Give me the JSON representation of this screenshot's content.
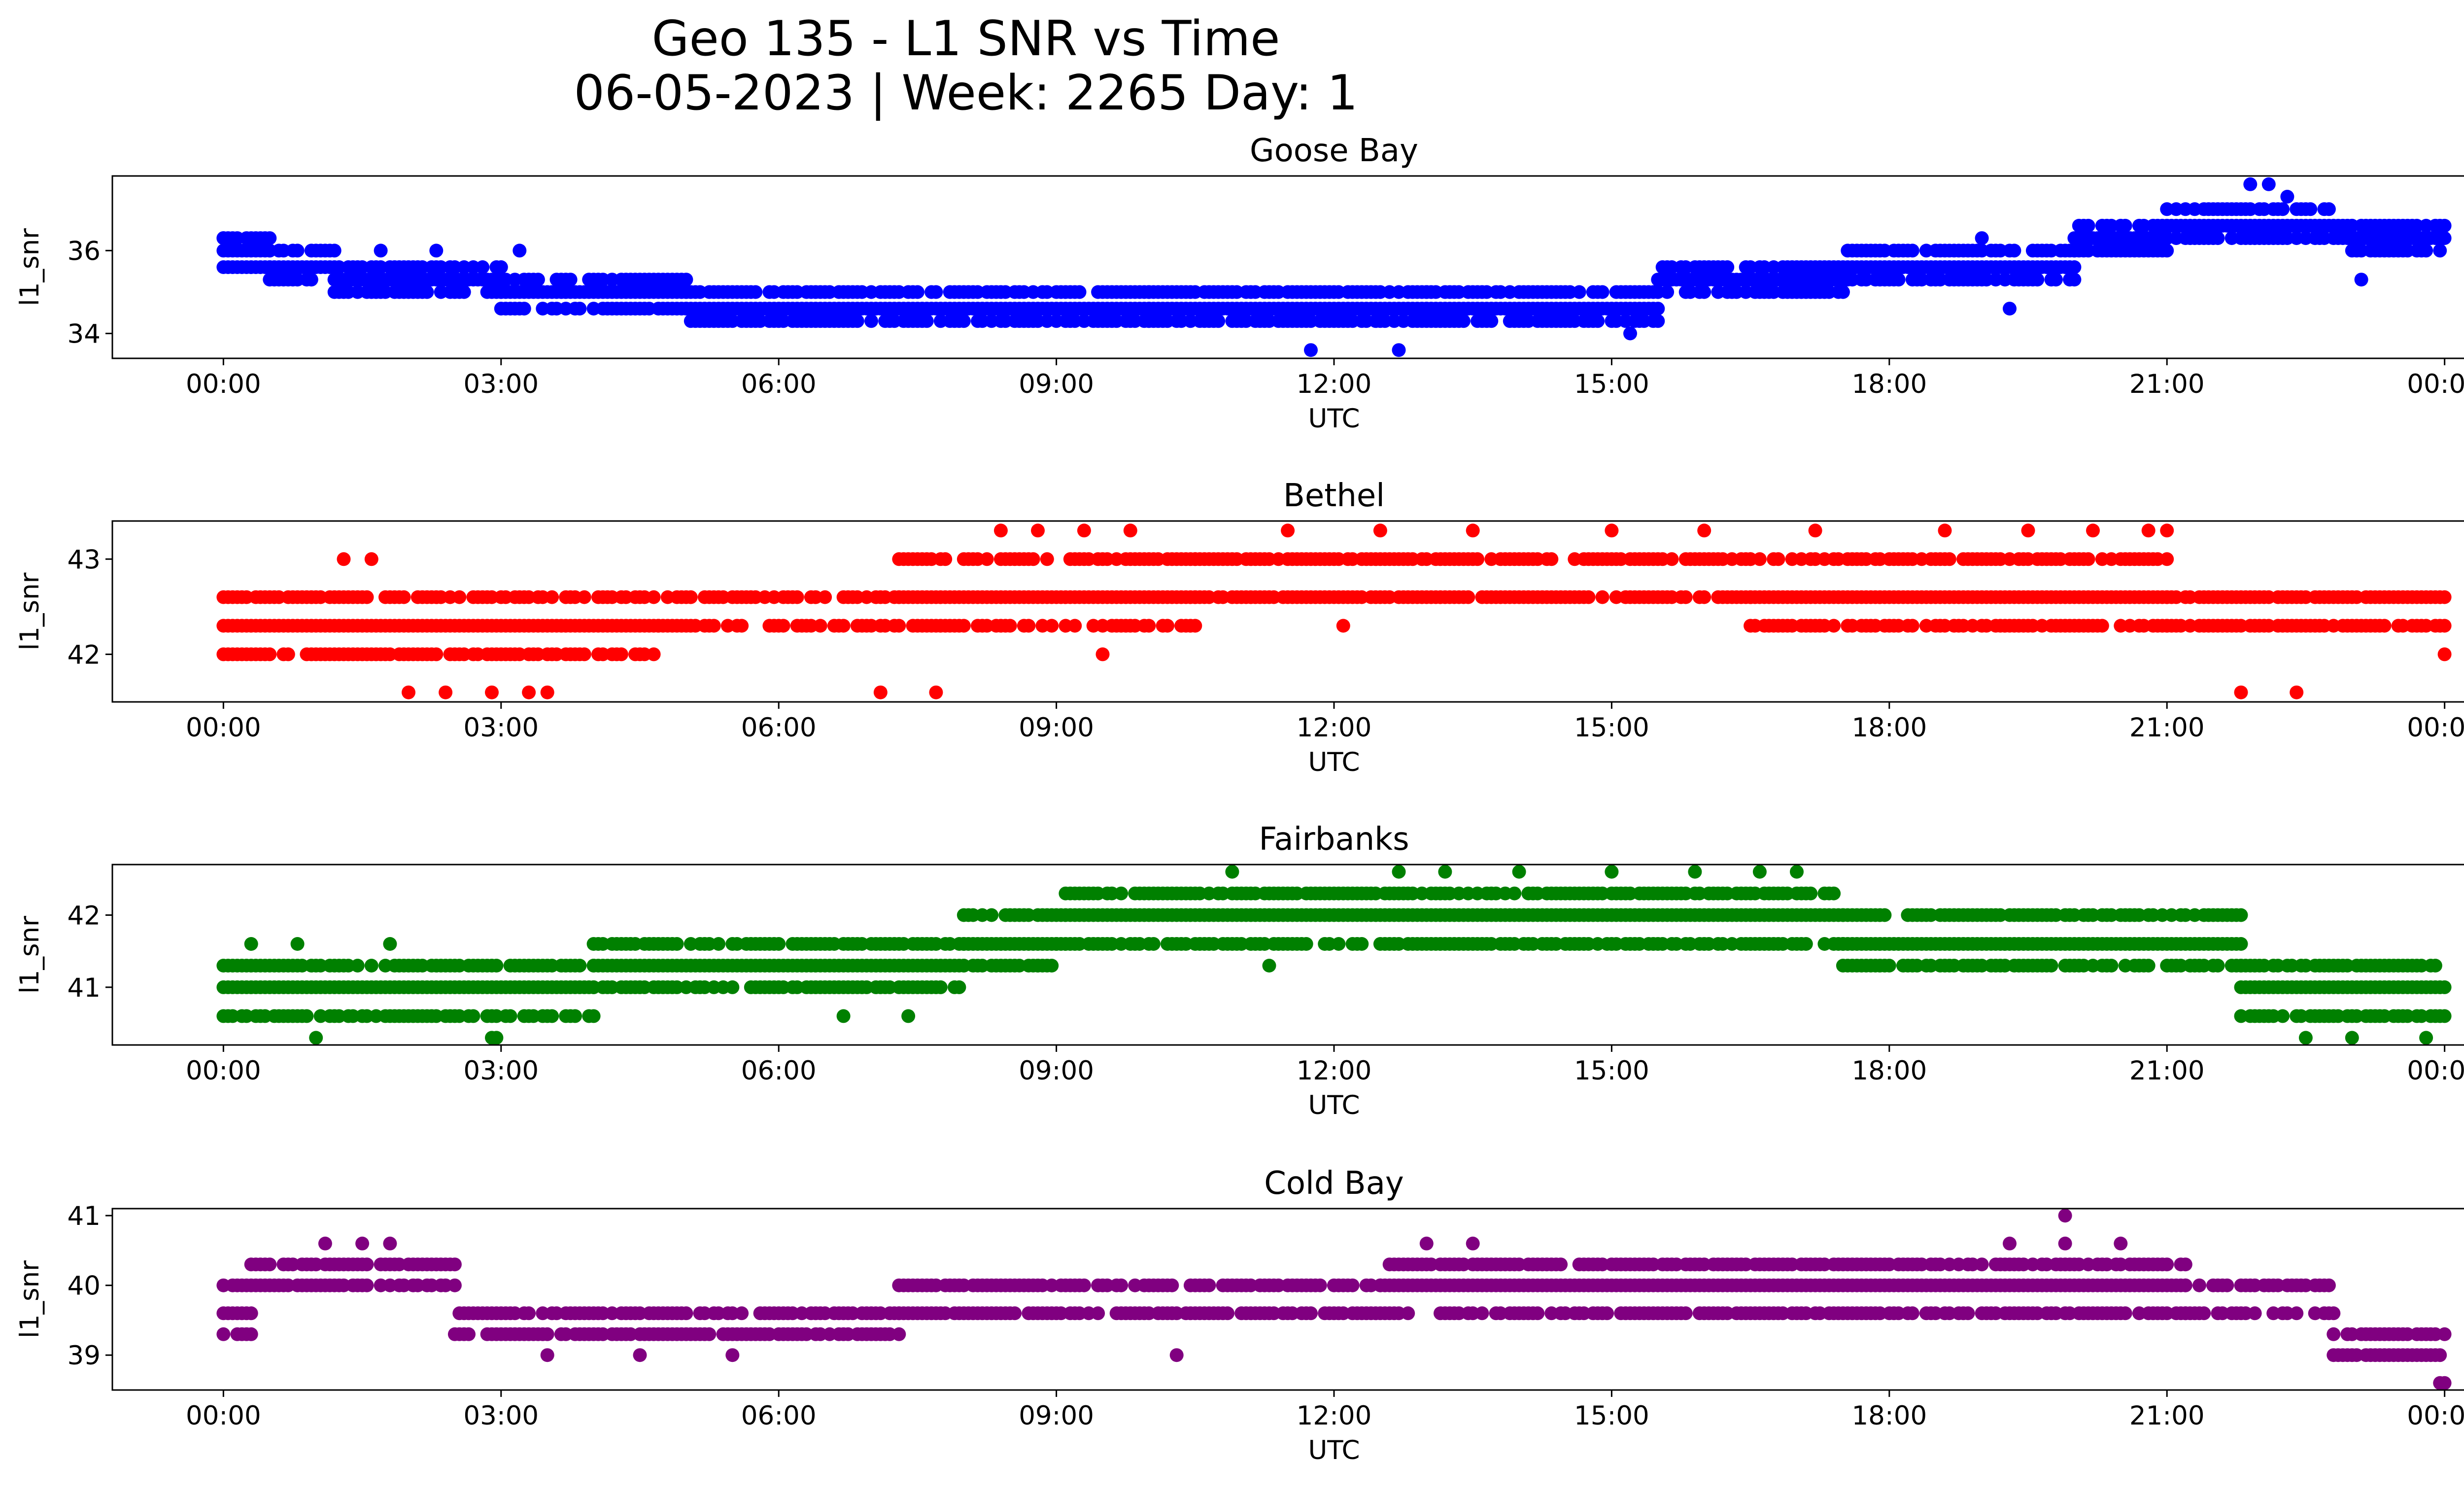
{
  "figure": {
    "title_line1": "Geo 135 - L1 SNR vs Time",
    "title_line2": "06-05-2023 | Week: 2265 Day: 1"
  },
  "chart_data": [
    {
      "type": "scatter",
      "title": "Goose Bay",
      "color": "#0000ff",
      "xlabel": "UTC",
      "ylabel": "l1_snr",
      "x_unit": "hours UTC",
      "xlim": [
        -1.2,
        25.2
      ],
      "ylim": [
        33.4,
        37.8
      ],
      "xticks": [
        0,
        3,
        6,
        9,
        12,
        15,
        18,
        21,
        24
      ],
      "xtick_labels": [
        "00:00",
        "03:00",
        "06:00",
        "09:00",
        "12:00",
        "15:00",
        "18:00",
        "21:00",
        "00:00"
      ],
      "yticks": [
        34,
        36
      ],
      "ytick_labels": [
        "34",
        "36"
      ],
      "levels": [
        33.6,
        34.0,
        34.3,
        34.6,
        35.0,
        35.3,
        35.6,
        36.0,
        36.3,
        36.6,
        37.0,
        37.3,
        37.6
      ],
      "bands": [
        {
          "from": 0.0,
          "to": 0.5,
          "levels": [
            35.6,
            36.0,
            36.3
          ]
        },
        {
          "from": 0.5,
          "to": 1.2,
          "levels": [
            35.3,
            35.6,
            36.0
          ]
        },
        {
          "from": 1.2,
          "to": 3.0,
          "levels": [
            35.0,
            35.3,
            35.6
          ]
        },
        {
          "from": 3.0,
          "to": 5.0,
          "levels": [
            34.6,
            35.0,
            35.3
          ]
        },
        {
          "from": 5.0,
          "to": 10.0,
          "levels": [
            34.3,
            34.6,
            35.0
          ]
        },
        {
          "from": 10.0,
          "to": 13.0,
          "levels": [
            34.3,
            34.6,
            35.0
          ]
        },
        {
          "from": 13.0,
          "to": 15.5,
          "levels": [
            34.3,
            34.6,
            35.0
          ]
        },
        {
          "from": 15.5,
          "to": 17.5,
          "levels": [
            35.0,
            35.3,
            35.6
          ]
        },
        {
          "from": 17.5,
          "to": 20.0,
          "levels": [
            35.3,
            35.6,
            36.0
          ]
        },
        {
          "from": 20.0,
          "to": 21.0,
          "levels": [
            36.0,
            36.3,
            36.6
          ]
        },
        {
          "from": 21.0,
          "to": 23.0,
          "levels": [
            36.3,
            36.6,
            37.0
          ]
        },
        {
          "from": 23.0,
          "to": 24.0,
          "levels": [
            36.0,
            36.3,
            36.6
          ]
        }
      ],
      "outliers": [
        [
          11.75,
          33.6
        ],
        [
          12.7,
          33.6
        ],
        [
          21.9,
          37.6
        ],
        [
          22.1,
          37.6
        ],
        [
          22.3,
          37.3
        ],
        [
          15.2,
          34.0
        ],
        [
          0.0,
          36.3
        ],
        [
          1.7,
          36.0
        ],
        [
          2.3,
          36.0
        ],
        [
          3.2,
          36.0
        ],
        [
          19.3,
          34.6
        ],
        [
          19.0,
          36.3
        ],
        [
          23.1,
          35.3
        ]
      ]
    },
    {
      "type": "scatter",
      "title": "Bethel",
      "color": "#ff0000",
      "xlabel": "UTC",
      "ylabel": "l1_snr",
      "x_unit": "hours UTC",
      "xlim": [
        -1.2,
        25.2
      ],
      "ylim": [
        41.5,
        43.4
      ],
      "xticks": [
        0,
        3,
        6,
        9,
        12,
        15,
        18,
        21,
        24
      ],
      "xtick_labels": [
        "00:00",
        "03:00",
        "06:00",
        "09:00",
        "12:00",
        "15:00",
        "18:00",
        "21:00",
        "00:00"
      ],
      "yticks": [
        42,
        43
      ],
      "ytick_labels": [
        "42",
        "43"
      ],
      "levels": [
        41.6,
        42.0,
        42.3,
        42.6,
        43.0,
        43.3
      ],
      "bands": [
        {
          "from": 0.0,
          "to": 4.7,
          "levels": [
            42.0,
            42.3,
            42.6
          ]
        },
        {
          "from": 4.7,
          "to": 7.3,
          "levels": [
            42.3,
            42.6
          ]
        },
        {
          "from": 7.3,
          "to": 10.5,
          "levels": [
            42.3,
            42.6,
            43.0
          ]
        },
        {
          "from": 10.5,
          "to": 16.5,
          "levels": [
            42.6,
            43.0
          ]
        },
        {
          "from": 16.5,
          "to": 21.0,
          "levels": [
            42.3,
            42.6,
            43.0
          ]
        },
        {
          "from": 21.0,
          "to": 24.0,
          "levels": [
            42.3,
            42.6
          ]
        }
      ],
      "outliers": [
        [
          1.3,
          43.0
        ],
        [
          1.6,
          43.0
        ],
        [
          2.0,
          41.6
        ],
        [
          2.4,
          41.6
        ],
        [
          2.9,
          41.6
        ],
        [
          3.3,
          41.6
        ],
        [
          3.5,
          41.6
        ],
        [
          7.1,
          41.6
        ],
        [
          7.7,
          41.6
        ],
        [
          9.5,
          42.0
        ],
        [
          12.1,
          42.3
        ],
        [
          21.8,
          41.6
        ],
        [
          22.4,
          41.6
        ],
        [
          24.0,
          42.0
        ],
        [
          8.4,
          43.3
        ],
        [
          8.8,
          43.3
        ],
        [
          9.3,
          43.3
        ],
        [
          9.8,
          43.3
        ],
        [
          11.5,
          43.3
        ],
        [
          12.5,
          43.3
        ],
        [
          13.5,
          43.3
        ],
        [
          15.0,
          43.3
        ],
        [
          16.0,
          43.3
        ],
        [
          17.2,
          43.3
        ],
        [
          18.6,
          43.3
        ],
        [
          19.5,
          43.3
        ],
        [
          20.2,
          43.3
        ],
        [
          20.8,
          43.3
        ],
        [
          21.0,
          43.3
        ]
      ]
    },
    {
      "type": "scatter",
      "title": "Fairbanks",
      "color": "#008000",
      "xlabel": "UTC",
      "ylabel": "l1_snr",
      "x_unit": "hours UTC",
      "xlim": [
        -1.2,
        25.2
      ],
      "ylim": [
        40.2,
        42.7
      ],
      "xticks": [
        0,
        3,
        6,
        9,
        12,
        15,
        18,
        21,
        24
      ],
      "xtick_labels": [
        "00:00",
        "03:00",
        "06:00",
        "09:00",
        "12:00",
        "15:00",
        "18:00",
        "21:00",
        "00:00"
      ],
      "yticks": [
        41,
        42
      ],
      "ytick_labels": [
        "41",
        "42"
      ],
      "levels": [
        40.3,
        40.6,
        41.0,
        41.3,
        41.6,
        42.0,
        42.3,
        42.6
      ],
      "bands": [
        {
          "from": 0.0,
          "to": 4.0,
          "levels": [
            40.6,
            41.0,
            41.3
          ]
        },
        {
          "from": 4.0,
          "to": 8.0,
          "levels": [
            41.0,
            41.3,
            41.6
          ]
        },
        {
          "from": 8.0,
          "to": 9.0,
          "levels": [
            41.3,
            41.6,
            42.0
          ]
        },
        {
          "from": 9.0,
          "to": 17.5,
          "levels": [
            41.6,
            42.0,
            42.3
          ]
        },
        {
          "from": 17.5,
          "to": 21.8,
          "levels": [
            41.3,
            41.6,
            42.0
          ]
        },
        {
          "from": 21.8,
          "to": 24.0,
          "levels": [
            40.6,
            41.0,
            41.3
          ]
        }
      ],
      "outliers": [
        [
          1.0,
          40.3
        ],
        [
          2.9,
          40.3
        ],
        [
          2.95,
          40.3
        ],
        [
          22.5,
          40.3
        ],
        [
          23.0,
          40.3
        ],
        [
          23.8,
          40.3
        ],
        [
          10.9,
          42.6
        ],
        [
          12.7,
          42.6
        ],
        [
          13.2,
          42.6
        ],
        [
          14.0,
          42.6
        ],
        [
          15.0,
          42.6
        ],
        [
          15.9,
          42.6
        ],
        [
          16.6,
          42.6
        ],
        [
          17.0,
          42.6
        ],
        [
          0.3,
          41.6
        ],
        [
          0.8,
          41.6
        ],
        [
          1.8,
          41.6
        ],
        [
          6.7,
          40.6
        ],
        [
          7.4,
          40.6
        ],
        [
          8.8,
          41.3
        ],
        [
          11.3,
          41.3
        ]
      ]
    },
    {
      "type": "scatter",
      "title": "Cold Bay",
      "color": "#800080",
      "xlabel": "UTC",
      "ylabel": "l1_snr",
      "x_unit": "hours UTC",
      "xlim": [
        -1.2,
        25.2
      ],
      "ylim": [
        38.5,
        41.1
      ],
      "xticks": [
        0,
        3,
        6,
        9,
        12,
        15,
        18,
        21,
        24
      ],
      "xtick_labels": [
        "00:00",
        "03:00",
        "06:00",
        "09:00",
        "12:00",
        "15:00",
        "18:00",
        "21:00",
        "00:00"
      ],
      "yticks": [
        39,
        40,
        41
      ],
      "ytick_labels": [
        "39",
        "40",
        "41"
      ],
      "levels": [
        38.6,
        39.0,
        39.3,
        39.6,
        40.0,
        40.3,
        40.6,
        41.0
      ],
      "bands": [
        {
          "from": 0.0,
          "to": 0.3,
          "levels": [
            39.3,
            39.6,
            40.0
          ]
        },
        {
          "from": 0.3,
          "to": 2.5,
          "levels": [
            40.0,
            40.3
          ]
        },
        {
          "from": 2.5,
          "to": 5.0,
          "levels": [
            39.3,
            39.6
          ]
        },
        {
          "from": 5.0,
          "to": 7.3,
          "levels": [
            39.3,
            39.6
          ]
        },
        {
          "from": 7.3,
          "to": 12.5,
          "levels": [
            39.6,
            40.0
          ]
        },
        {
          "from": 12.5,
          "to": 21.2,
          "levels": [
            39.6,
            40.0,
            40.3
          ]
        },
        {
          "from": 21.2,
          "to": 22.8,
          "levels": [
            39.6,
            40.0
          ]
        },
        {
          "from": 22.8,
          "to": 24.0,
          "levels": [
            39.0,
            39.3
          ]
        }
      ],
      "outliers": [
        [
          19.9,
          41.0
        ],
        [
          1.1,
          40.6
        ],
        [
          1.5,
          40.6
        ],
        [
          1.8,
          40.6
        ],
        [
          13.0,
          40.6
        ],
        [
          13.5,
          40.6
        ],
        [
          19.3,
          40.6
        ],
        [
          19.9,
          40.6
        ],
        [
          20.5,
          40.6
        ],
        [
          23.95,
          38.6
        ],
        [
          24.0,
          38.6
        ],
        [
          10.3,
          39.0
        ],
        [
          3.5,
          39.0
        ],
        [
          4.5,
          39.0
        ],
        [
          5.5,
          39.0
        ]
      ]
    }
  ]
}
